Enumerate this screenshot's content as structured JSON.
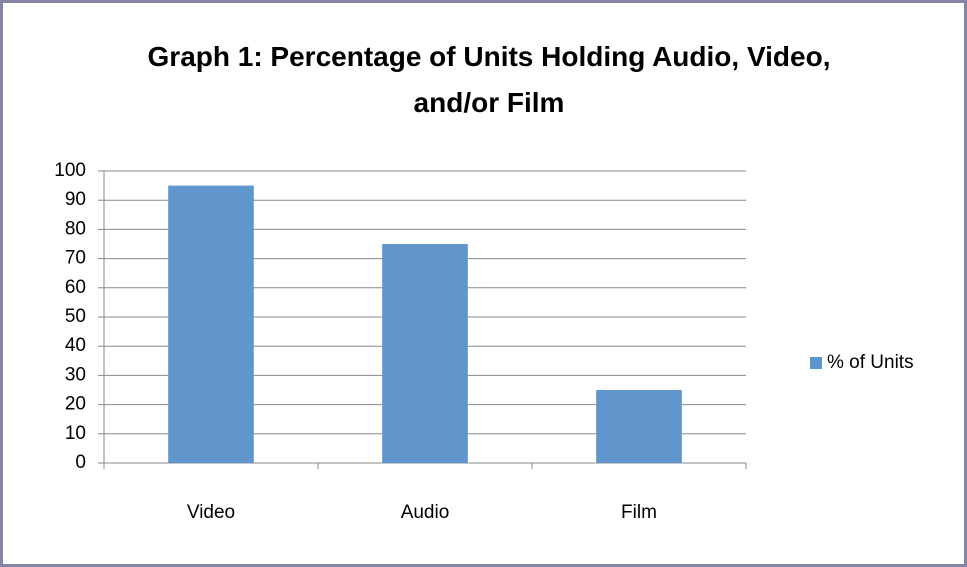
{
  "chart_data": {
    "type": "bar",
    "title": "Graph 1: Percentage of Units Holding Audio, Video, and/or Film",
    "categories": [
      "Video",
      "Audio",
      "Film"
    ],
    "series": [
      {
        "name": "% of Units",
        "color": "#6096cb",
        "values": [
          95,
          75,
          25
        ]
      }
    ],
    "ylim": [
      0,
      100
    ],
    "yticks": [
      0,
      10,
      20,
      30,
      40,
      50,
      60,
      70,
      80,
      90,
      100
    ],
    "grid": true,
    "legend": "right"
  }
}
